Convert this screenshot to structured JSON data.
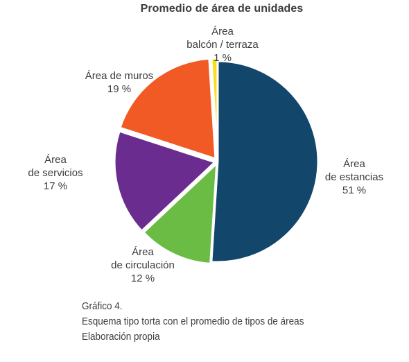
{
  "chart_data": {
    "type": "pie",
    "title": "Promedio de área de unidades",
    "unit": "%",
    "slices": [
      {
        "label_lines": [
          "Área",
          "de estancias"
        ],
        "value": 51,
        "value_text": "51 %",
        "color": "#12466b"
      },
      {
        "label_lines": [
          "Área",
          "de circulación"
        ],
        "value": 12,
        "value_text": "12 %",
        "color": "#6bbc45"
      },
      {
        "label_lines": [
          "Área",
          "de servicios"
        ],
        "value": 17,
        "value_text": "17 %",
        "color": "#6a2d8f"
      },
      {
        "label_lines": [
          "Área de muros"
        ],
        "value": 19,
        "value_text": "19 %",
        "color": "#f15a24"
      },
      {
        "label_lines": [
          "Área",
          "balcón / terraza"
        ],
        "value": 1,
        "value_text": "1 %",
        "color": "#f7e01a"
      }
    ]
  },
  "caption": {
    "line1": "Gráfico 4.",
    "line2": "Esquema tipo torta con el promedio de tipos de áreas",
    "line3": "Elaboración propia"
  }
}
